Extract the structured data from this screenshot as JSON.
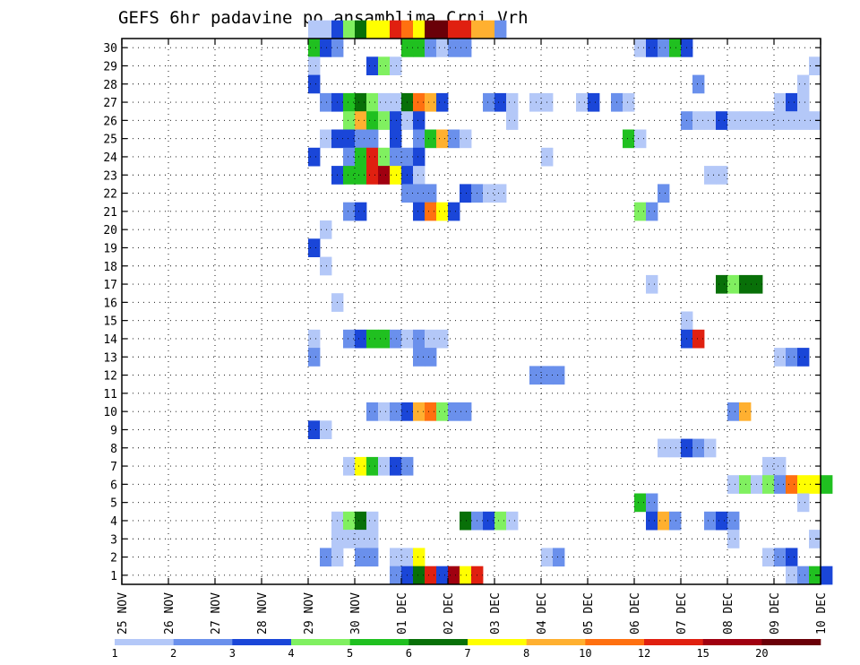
{
  "chart_data": {
    "type": "heatmap",
    "title": "GEFS 6hr padavine po ansamblima Crni Vrh",
    "x_tick_labels": [
      "25 NOV",
      "26 NOV",
      "27 NOV",
      "28 NOV",
      "29 NOV",
      "30 NOV",
      "01 DEC",
      "02 DEC",
      "03 DEC",
      "04 DEC",
      "05 DEC",
      "06 DEC",
      "07 DEC",
      "08 DEC",
      "09 DEC",
      "10 DEC"
    ],
    "y_tick_labels": [
      "1",
      "2",
      "3",
      "4",
      "5",
      "6",
      "7",
      "8",
      "9",
      "10",
      "11",
      "12",
      "13",
      "14",
      "15",
      "16",
      "17",
      "18",
      "19",
      "20",
      "21",
      "22",
      "23",
      "24",
      "25",
      "26",
      "27",
      "28",
      "29",
      "30"
    ],
    "x_unit": "6-hour step from 25 NOV 00Z",
    "members": 30,
    "grid": true,
    "colorbar": {
      "labels": [
        "1",
        "2",
        "3",
        "4",
        "5",
        "6",
        "7",
        "8",
        "10",
        "12",
        "15",
        "20"
      ],
      "colors": [
        "#b4c8f8",
        "#6a90ec",
        "#1a46d8",
        "#80f060",
        "#20c020",
        "#087008",
        "#ffff00",
        "#ffb030",
        "#ff7010",
        "#e02010",
        "#a00010",
        "#6a0008"
      ]
    },
    "cells": [
      [
        30,
        16,
        0
      ],
      [
        30,
        17,
        0
      ],
      [
        30,
        18,
        2
      ],
      [
        30,
        19,
        3
      ],
      [
        30,
        20,
        5
      ],
      [
        30,
        21,
        6
      ],
      [
        30,
        22,
        6
      ],
      [
        30,
        23,
        9
      ],
      [
        30,
        24,
        8
      ],
      [
        30,
        25,
        6
      ],
      [
        30,
        26,
        11
      ],
      [
        30,
        27,
        11
      ],
      [
        30,
        28,
        9
      ],
      [
        30,
        29,
        9
      ],
      [
        30,
        30,
        7
      ],
      [
        30,
        31,
        7
      ],
      [
        30,
        32,
        1
      ],
      [
        29,
        16,
        4
      ],
      [
        29,
        17,
        2
      ],
      [
        29,
        18,
        1
      ],
      [
        29,
        24,
        4
      ],
      [
        29,
        25,
        4
      ],
      [
        29,
        26,
        1
      ],
      [
        29,
        27,
        0
      ],
      [
        29,
        28,
        1
      ],
      [
        29,
        29,
        1
      ],
      [
        29,
        44,
        0
      ],
      [
        29,
        45,
        2
      ],
      [
        29,
        46,
        1
      ],
      [
        29,
        47,
        4
      ],
      [
        29,
        48,
        2
      ],
      [
        28,
        16,
        0
      ],
      [
        28,
        21,
        2
      ],
      [
        28,
        22,
        3
      ],
      [
        28,
        23,
        0
      ],
      [
        28,
        59,
        0
      ],
      [
        27,
        16,
        2
      ],
      [
        27,
        49,
        1
      ],
      [
        27,
        58,
        0
      ],
      [
        26,
        17,
        1
      ],
      [
        26,
        18,
        2
      ],
      [
        26,
        19,
        4
      ],
      [
        26,
        20,
        5
      ],
      [
        26,
        21,
        3
      ],
      [
        26,
        22,
        0
      ],
      [
        26,
        23,
        0
      ],
      [
        26,
        24,
        5
      ],
      [
        26,
        25,
        8
      ],
      [
        26,
        26,
        7
      ],
      [
        26,
        27,
        2
      ],
      [
        26,
        31,
        1
      ],
      [
        26,
        32,
        2
      ],
      [
        26,
        33,
        0
      ],
      [
        26,
        35,
        0
      ],
      [
        26,
        36,
        0
      ],
      [
        26,
        39,
        0
      ],
      [
        26,
        40,
        2
      ],
      [
        26,
        42,
        1
      ],
      [
        26,
        43,
        0
      ],
      [
        26,
        56,
        0
      ],
      [
        26,
        57,
        2
      ],
      [
        26,
        58,
        0
      ],
      [
        25,
        19,
        3
      ],
      [
        25,
        20,
        7
      ],
      [
        25,
        21,
        4
      ],
      [
        25,
        22,
        3
      ],
      [
        25,
        23,
        2
      ],
      [
        25,
        24,
        0
      ],
      [
        25,
        25,
        2
      ],
      [
        25,
        33,
        0
      ],
      [
        25,
        48,
        1
      ],
      [
        25,
        49,
        0
      ],
      [
        25,
        50,
        0
      ],
      [
        25,
        51,
        2
      ],
      [
        25,
        52,
        0
      ],
      [
        25,
        53,
        0
      ],
      [
        25,
        54,
        0
      ],
      [
        25,
        55,
        0
      ],
      [
        25,
        56,
        0
      ],
      [
        25,
        57,
        0
      ],
      [
        25,
        58,
        0
      ],
      [
        25,
        59,
        0
      ],
      [
        24,
        17,
        0
      ],
      [
        24,
        18,
        2
      ],
      [
        24,
        19,
        2
      ],
      [
        24,
        20,
        1
      ],
      [
        24,
        21,
        1
      ],
      [
        24,
        23,
        2
      ],
      [
        24,
        25,
        1
      ],
      [
        24,
        26,
        4
      ],
      [
        24,
        27,
        7
      ],
      [
        24,
        28,
        1
      ],
      [
        24,
        29,
        0
      ],
      [
        24,
        43,
        4
      ],
      [
        24,
        44,
        0
      ],
      [
        23,
        16,
        2
      ],
      [
        23,
        19,
        1
      ],
      [
        23,
        20,
        4
      ],
      [
        23,
        21,
        9
      ],
      [
        23,
        22,
        3
      ],
      [
        23,
        23,
        1
      ],
      [
        23,
        24,
        1
      ],
      [
        23,
        25,
        2
      ],
      [
        23,
        36,
        0
      ],
      [
        22,
        18,
        2
      ],
      [
        22,
        19,
        4
      ],
      [
        22,
        20,
        4
      ],
      [
        22,
        21,
        9
      ],
      [
        22,
        22,
        10
      ],
      [
        22,
        23,
        6
      ],
      [
        22,
        24,
        2
      ],
      [
        22,
        25,
        0
      ],
      [
        22,
        50,
        0
      ],
      [
        22,
        51,
        0
      ],
      [
        21,
        24,
        1
      ],
      [
        21,
        25,
        1
      ],
      [
        21,
        26,
        1
      ],
      [
        21,
        29,
        2
      ],
      [
        21,
        30,
        1
      ],
      [
        21,
        31,
        0
      ],
      [
        21,
        32,
        0
      ],
      [
        21,
        46,
        1
      ],
      [
        20,
        19,
        1
      ],
      [
        20,
        20,
        2
      ],
      [
        20,
        25,
        2
      ],
      [
        20,
        26,
        8
      ],
      [
        20,
        27,
        6
      ],
      [
        20,
        28,
        2
      ],
      [
        20,
        44,
        3
      ],
      [
        20,
        45,
        1
      ],
      [
        19,
        17,
        0
      ],
      [
        18,
        16,
        2
      ],
      [
        17,
        17,
        0
      ],
      [
        16,
        45,
        0
      ],
      [
        16,
        51,
        5
      ],
      [
        16,
        52,
        3
      ],
      [
        16,
        53,
        5
      ],
      [
        16,
        54,
        5
      ],
      [
        15,
        18,
        0
      ],
      [
        14,
        48,
        0
      ],
      [
        13,
        16,
        0
      ],
      [
        13,
        19,
        1
      ],
      [
        13,
        20,
        2
      ],
      [
        13,
        21,
        4
      ],
      [
        13,
        22,
        4
      ],
      [
        13,
        23,
        1
      ],
      [
        13,
        24,
        0
      ],
      [
        13,
        25,
        1
      ],
      [
        13,
        26,
        0
      ],
      [
        13,
        27,
        0
      ],
      [
        13,
        48,
        2
      ],
      [
        13,
        49,
        9
      ],
      [
        12,
        16,
        1
      ],
      [
        12,
        25,
        1
      ],
      [
        12,
        26,
        1
      ],
      [
        12,
        56,
        0
      ],
      [
        12,
        57,
        1
      ],
      [
        12,
        58,
        2
      ],
      [
        11,
        35,
        1
      ],
      [
        11,
        36,
        1
      ],
      [
        11,
        37,
        1
      ],
      [
        9,
        21,
        1
      ],
      [
        9,
        22,
        0
      ],
      [
        9,
        23,
        1
      ],
      [
        9,
        24,
        2
      ],
      [
        9,
        25,
        7
      ],
      [
        9,
        26,
        8
      ],
      [
        9,
        27,
        3
      ],
      [
        9,
        28,
        1
      ],
      [
        9,
        29,
        1
      ],
      [
        9,
        52,
        1
      ],
      [
        9,
        53,
        7
      ],
      [
        8,
        16,
        2
      ],
      [
        8,
        17,
        0
      ],
      [
        7,
        46,
        0
      ],
      [
        7,
        47,
        0
      ],
      [
        7,
        48,
        2
      ],
      [
        7,
        49,
        1
      ],
      [
        7,
        50,
        0
      ],
      [
        6,
        19,
        0
      ],
      [
        6,
        20,
        6
      ],
      [
        6,
        21,
        4
      ],
      [
        6,
        22,
        0
      ],
      [
        6,
        23,
        2
      ],
      [
        6,
        24,
        1
      ],
      [
        6,
        55,
        0
      ],
      [
        6,
        56,
        0
      ],
      [
        5,
        52,
        0
      ],
      [
        5,
        53,
        3
      ],
      [
        5,
        54,
        0
      ],
      [
        5,
        55,
        3
      ],
      [
        5,
        56,
        1
      ],
      [
        5,
        57,
        8
      ],
      [
        5,
        58,
        6
      ],
      [
        5,
        59,
        6
      ],
      [
        5,
        60,
        4
      ],
      [
        4,
        44,
        4
      ],
      [
        4,
        45,
        1
      ],
      [
        4,
        58,
        0
      ],
      [
        3,
        18,
        0
      ],
      [
        3,
        19,
        3
      ],
      [
        3,
        20,
        5
      ],
      [
        3,
        21,
        0
      ],
      [
        3,
        29,
        5
      ],
      [
        3,
        30,
        1
      ],
      [
        3,
        31,
        2
      ],
      [
        3,
        32,
        3
      ],
      [
        3,
        33,
        0
      ],
      [
        3,
        45,
        2
      ],
      [
        3,
        46,
        7
      ],
      [
        3,
        47,
        1
      ],
      [
        3,
        50,
        1
      ],
      [
        3,
        51,
        2
      ],
      [
        3,
        52,
        1
      ],
      [
        2,
        18,
        0
      ],
      [
        2,
        19,
        0
      ],
      [
        2,
        20,
        0
      ],
      [
        2,
        21,
        0
      ],
      [
        2,
        52,
        0
      ],
      [
        2,
        59,
        0
      ],
      [
        1,
        17,
        1
      ],
      [
        1,
        18,
        0
      ],
      [
        1,
        20,
        1
      ],
      [
        1,
        21,
        1
      ],
      [
        1,
        23,
        0
      ],
      [
        1,
        24,
        0
      ],
      [
        1,
        25,
        6
      ],
      [
        1,
        36,
        0
      ],
      [
        1,
        37,
        1
      ],
      [
        1,
        55,
        0
      ],
      [
        1,
        56,
        1
      ],
      [
        1,
        57,
        2
      ],
      [
        0,
        23,
        1
      ],
      [
        0,
        24,
        2
      ],
      [
        0,
        25,
        5
      ],
      [
        0,
        26,
        9
      ],
      [
        0,
        27,
        2
      ],
      [
        0,
        28,
        10
      ],
      [
        0,
        29,
        6
      ],
      [
        0,
        30,
        9
      ],
      [
        0,
        57,
        0
      ],
      [
        0,
        58,
        1
      ],
      [
        0,
        59,
        4
      ],
      [
        0,
        60,
        2
      ]
    ]
  }
}
